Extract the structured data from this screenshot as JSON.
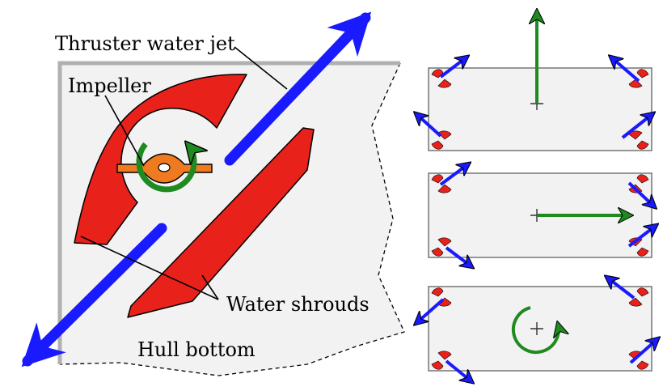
{
  "labels": {
    "thruster_jet": "Thruster water jet",
    "impeller": "Impeller",
    "water_shrouds": "Water shrouds",
    "hull_bottom": "Hull bottom"
  },
  "colors": {
    "hull_fill": "#f2f2f2",
    "hull_edge": "#b0b0b0",
    "shroud": "#e8211b",
    "impeller": "#f07a1f",
    "jet": "#1a1aff",
    "rotation": "#1f8a1f"
  },
  "panels": [
    {
      "id": "forward-motion",
      "indicator": "arrow-up"
    },
    {
      "id": "sideways-motion",
      "indicator": "arrow-right"
    },
    {
      "id": "rotation-motion",
      "indicator": "rotation"
    }
  ]
}
